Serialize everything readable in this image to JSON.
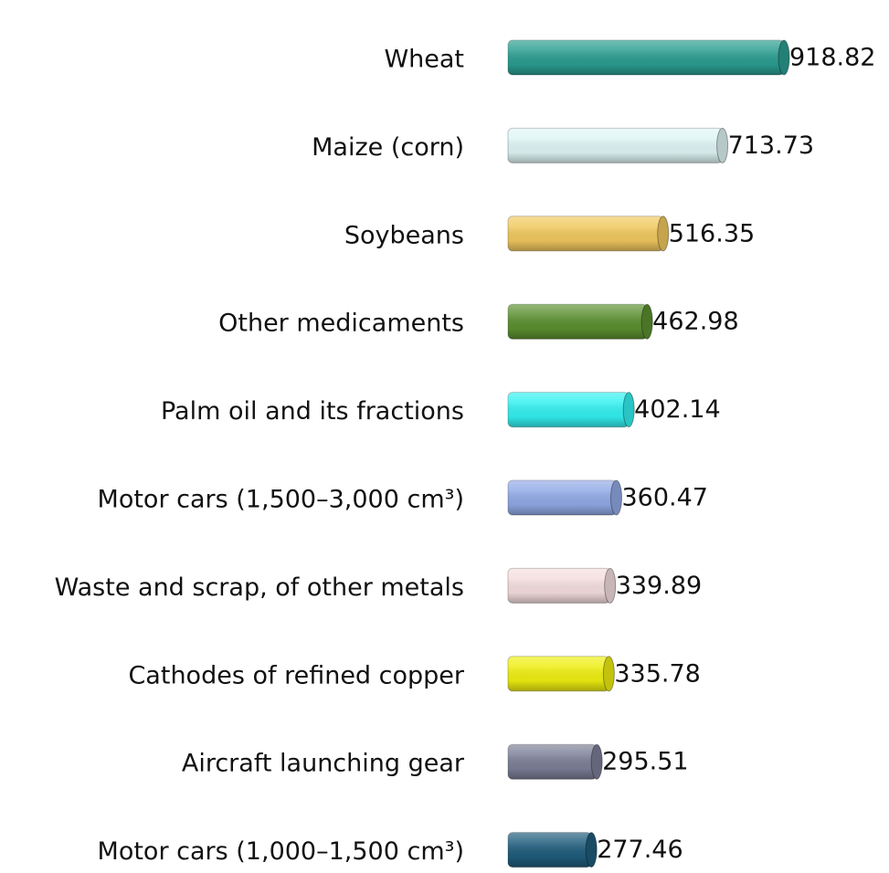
{
  "chart_data": {
    "type": "bar",
    "orientation": "horizontal",
    "categories": [
      "Wheat",
      "Maize (corn)",
      "Soybeans",
      "Other medicaments",
      "Palm oil and its fractions",
      "Motor cars (1,500–3,000 cm³)",
      "Waste and scrap, of other metals",
      "Cathodes of refined copper",
      "Aircraft launching gear",
      "Motor cars (1,000–1,500 cm³)"
    ],
    "values": [
      918.82,
      713.73,
      516.35,
      462.98,
      402.14,
      360.47,
      339.89,
      335.78,
      295.51,
      277.46
    ],
    "colors": [
      "#2a9d90",
      "#dff5f5",
      "#f1c85e",
      "#5b8f2f",
      "#33f0f0",
      "#91a9e6",
      "#f5dede",
      "#eeee10",
      "#7b7e96",
      "#1f5c7c"
    ]
  }
}
